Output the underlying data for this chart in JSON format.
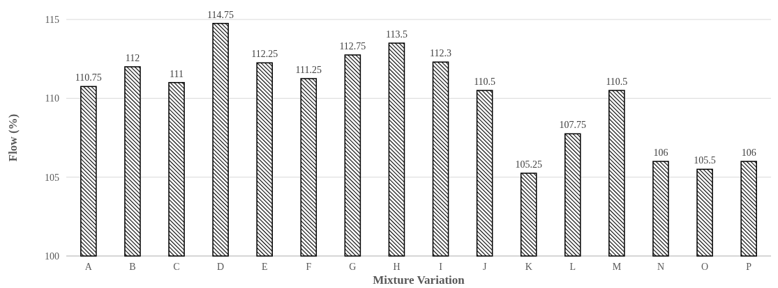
{
  "chart_data": {
    "type": "bar",
    "xlabel": "Mixture Variation",
    "ylabel": "Flow (%)",
    "categories": [
      "A",
      "B",
      "C",
      "D",
      "E",
      "F",
      "G",
      "H",
      "I",
      "J",
      "K",
      "L",
      "M",
      "N",
      "O",
      "P"
    ],
    "values": [
      110.75,
      112,
      111,
      114.75,
      112.25,
      111.25,
      112.75,
      113.5,
      112.3,
      110.5,
      105.25,
      107.75,
      110.5,
      106,
      105.5,
      106
    ],
    "color": "#000000",
    "ylim": [
      100,
      115
    ],
    "yticks": [
      100,
      105,
      110,
      115
    ],
    "grid": "y",
    "data_labels": true
  }
}
